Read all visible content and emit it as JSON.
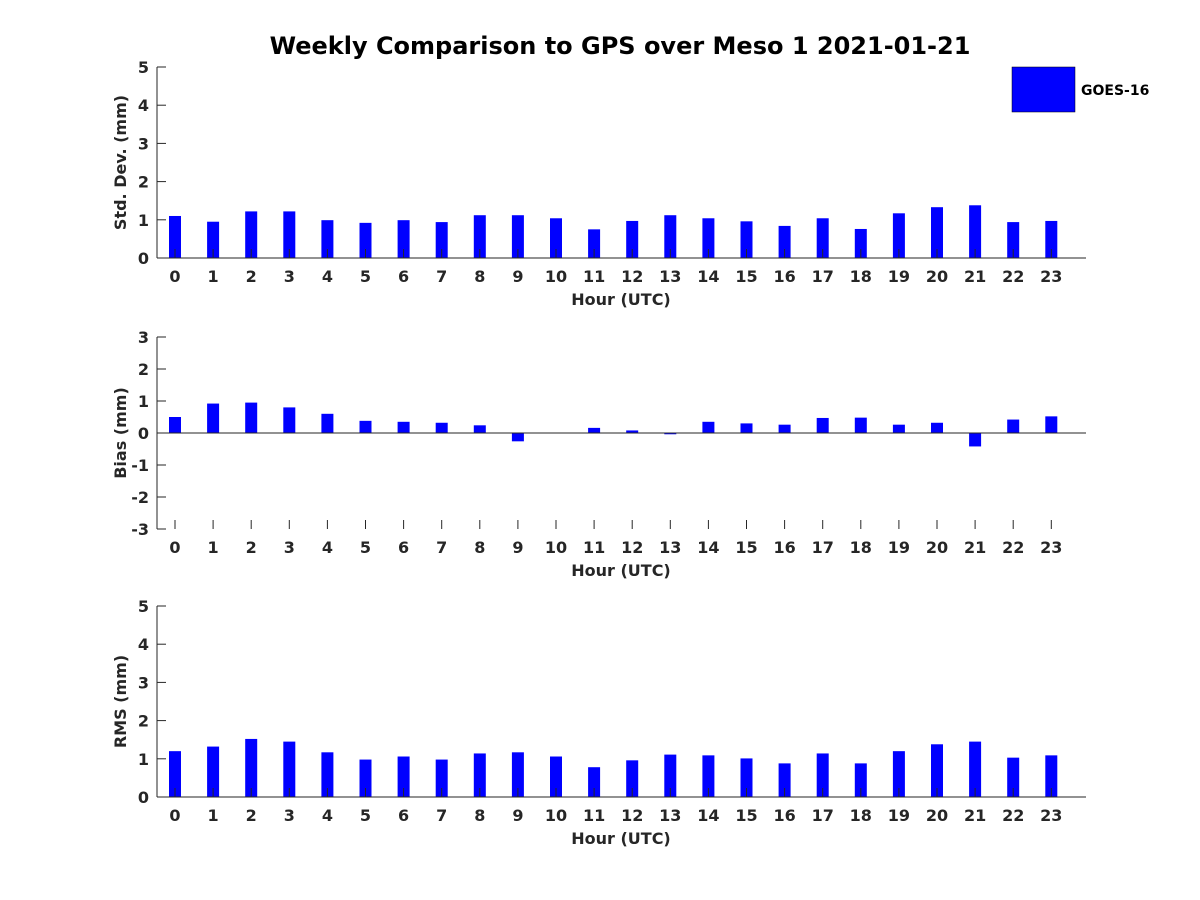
{
  "chart_data": {
    "type": "bar",
    "title": "Weekly Comparison to GPS over Meso 1 2021-01-21",
    "legend": {
      "label": "GOES-16",
      "color": "#0000ff",
      "placement": "top-right"
    },
    "categories": [
      "0",
      "1",
      "2",
      "3",
      "4",
      "5",
      "6",
      "7",
      "8",
      "9",
      "10",
      "11",
      "12",
      "13",
      "14",
      "15",
      "16",
      "17",
      "18",
      "19",
      "20",
      "21",
      "22",
      "23"
    ],
    "panels": [
      {
        "id": "std",
        "ylabel": "Std. Dev. (mm)",
        "xlabel": "Hour (UTC)",
        "ylim": [
          0,
          5
        ],
        "yticks": [
          "0",
          "1",
          "2",
          "3",
          "4",
          "5"
        ],
        "values": [
          1.1,
          0.95,
          1.22,
          1.22,
          0.99,
          0.92,
          0.99,
          0.94,
          1.12,
          1.12,
          1.04,
          0.75,
          0.97,
          1.12,
          1.04,
          0.96,
          0.84,
          1.04,
          0.76,
          1.17,
          1.33,
          1.38,
          0.94,
          0.97
        ]
      },
      {
        "id": "bias",
        "ylabel": "Bias (mm)",
        "xlabel": "Hour (UTC)",
        "ylim": [
          -3,
          3
        ],
        "yticks": [
          "-3",
          "-2",
          "-1",
          "0",
          "1",
          "2",
          "3"
        ],
        "values": [
          0.5,
          0.92,
          0.95,
          0.8,
          0.6,
          0.38,
          0.35,
          0.32,
          0.24,
          -0.26,
          0.0,
          0.16,
          0.08,
          -0.04,
          0.35,
          0.3,
          0.26,
          0.47,
          0.48,
          0.26,
          0.32,
          -0.42,
          0.42,
          0.52
        ]
      },
      {
        "id": "rms",
        "ylabel": "RMS (mm)",
        "xlabel": "Hour (UTC)",
        "ylim": [
          0,
          5
        ],
        "yticks": [
          "0",
          "1",
          "2",
          "3",
          "4",
          "5"
        ],
        "values": [
          1.2,
          1.32,
          1.52,
          1.45,
          1.17,
          0.98,
          1.06,
          0.98,
          1.14,
          1.17,
          1.06,
          0.78,
          0.96,
          1.11,
          1.09,
          1.01,
          0.88,
          1.14,
          0.88,
          1.2,
          1.38,
          1.45,
          1.03,
          1.09
        ]
      }
    ]
  }
}
